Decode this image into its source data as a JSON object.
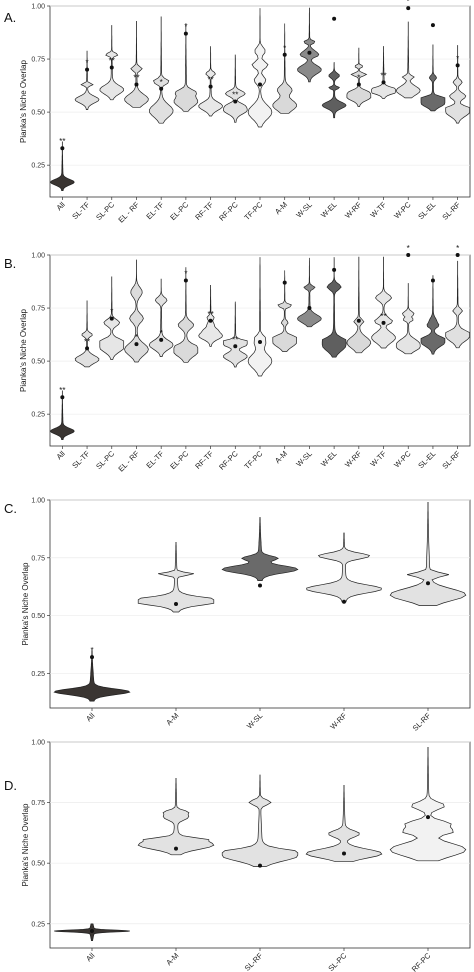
{
  "y_axis_label": "Pianka's Niche Overlap",
  "chart_data": [
    {
      "type": "violin",
      "panel_label": "A.",
      "ylabel": "Pianka's Niche Overlap",
      "ylim": [
        0.1,
        1.0
      ],
      "yticks": [
        "0.25",
        "0.50",
        "0.75",
        "1.00"
      ],
      "grid": true,
      "categories": [
        "All",
        "SL-TF",
        "SL-PC",
        "EL - RF",
        "EL-TF",
        "EL-PC",
        "RF-TF",
        "RF-PC",
        "TF-PC",
        "A-M",
        "W-SL",
        "W-EL",
        "W-RF",
        "W-TF",
        "W-PC",
        "SL-EL",
        "SL-RF"
      ],
      "observed": [
        0.33,
        0.7,
        0.71,
        0.63,
        0.61,
        0.87,
        0.62,
        0.55,
        0.63,
        0.77,
        0.78,
        0.94,
        0.63,
        0.64,
        0.99,
        0.91,
        0.72
      ],
      "significance": [
        "**",
        "*",
        "**",
        "**",
        "*",
        "*",
        "**",
        "**",
        "",
        "*",
        "",
        "",
        "*",
        "**",
        "*",
        "",
        "*"
      ],
      "fill": [
        "#3a3532",
        "#e0e0e0",
        "#e6e6e6",
        "#dcdcdc",
        "#e0e0e0",
        "#dadada",
        "#e8e8e8",
        "#e2e2e2",
        "#f2f2f2",
        "#d9d9d9",
        "#8a8a8a",
        "#5f5f5f",
        "#d9d9d9",
        "#e6e6e6",
        "#e4e4e4",
        "#6a6a6a",
        "#e0e0e0"
      ]
    },
    {
      "type": "violin",
      "panel_label": "B.",
      "ylabel": "Pianka's Niche Overlap",
      "ylim": [
        0.1,
        1.0
      ],
      "yticks": [
        "0.25",
        "0.50",
        "0.75",
        "1.00"
      ],
      "grid": true,
      "categories": [
        "All",
        "SL-TF",
        "SL-PC",
        "EL - RF",
        "EL-TF",
        "EL-PC",
        "RF-TF",
        "RF-PC",
        "TF-PC",
        "A-M",
        "W-SL",
        "W-EL",
        "W-RF",
        "W-TF",
        "W-PC",
        "SL-EL",
        "SL-RF"
      ],
      "observed": [
        0.33,
        0.56,
        0.7,
        0.58,
        0.6,
        0.88,
        0.69,
        0.57,
        0.59,
        0.87,
        0.75,
        0.93,
        0.69,
        0.68,
        1.0,
        0.88,
        1.0
      ],
      "significance": [
        "**",
        "**",
        "*",
        "*",
        "*",
        "*",
        "**",
        "**",
        "",
        "",
        "",
        "",
        "",
        "**",
        "*",
        "",
        "*"
      ],
      "fill": [
        "#3a3532",
        "#e0e0e0",
        "#e6e6e6",
        "#dcdcdc",
        "#e0e0e0",
        "#dadada",
        "#e8e8e8",
        "#e2e2e2",
        "#f2f2f2",
        "#d9d9d9",
        "#8a8a8a",
        "#5f5f5f",
        "#d9d9d9",
        "#e6e6e6",
        "#e4e4e4",
        "#6a6a6a",
        "#e0e0e0"
      ]
    },
    {
      "type": "violin",
      "panel_label": "C.",
      "ylabel": "Pianka's Niche Overlap",
      "ylim": [
        0.1,
        1.0
      ],
      "yticks": [
        "0.25",
        "0.50",
        "0.75",
        "1.00"
      ],
      "grid": true,
      "categories": [
        "All",
        "A-M",
        "W-SL",
        "W-RF",
        "SL-RF"
      ],
      "observed": [
        0.32,
        0.55,
        0.63,
        0.56,
        0.64
      ],
      "significance": [
        "*",
        "",
        "",
        "",
        ""
      ],
      "fill": [
        "#3a3532",
        "#e2e2e2",
        "#6a6a6a",
        "#e2e2e2",
        "#e2e2e2"
      ]
    },
    {
      "type": "violin",
      "panel_label": "D.",
      "ylabel": "Pianka's Niche Overlap",
      "ylim": [
        0.15,
        1.0
      ],
      "yticks": [
        "0.25",
        "0.50",
        "0.75",
        "1.00"
      ],
      "grid": true,
      "categories": [
        "All",
        "A-M",
        "SL-RF",
        "SL-PC",
        "RF-PC"
      ],
      "observed": [
        0.22,
        0.56,
        0.49,
        0.54,
        0.69
      ],
      "significance": [
        "",
        "",
        "",
        "",
        ""
      ],
      "fill": [
        "#3a3532",
        "#e2e2e2",
        "#e2e2e2",
        "#e2e2e2",
        "#f2f2f2"
      ]
    }
  ]
}
